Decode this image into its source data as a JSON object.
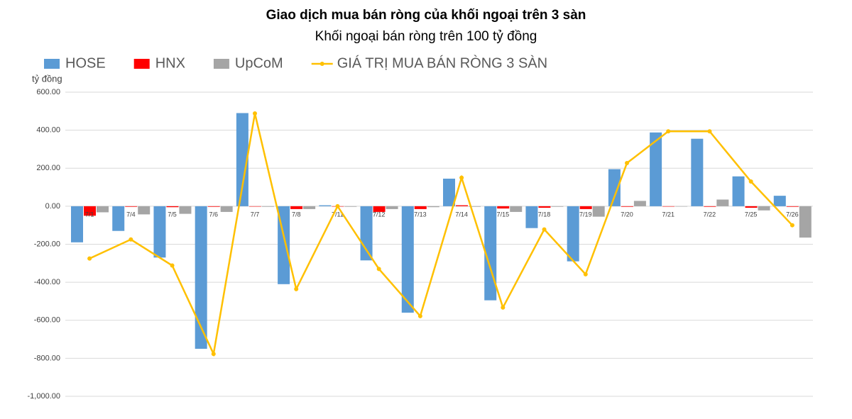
{
  "chart_data": {
    "type": "bar",
    "title": "Giao dịch mua bán ròng của khối ngoại trên 3 sàn",
    "subtitle": "Khối ngoại bán ròng trên 100 tỷ đồng",
    "y_label": "tỷ đồng",
    "categories": [
      "7/1",
      "7/4",
      "7/5",
      "7/6",
      "7/7",
      "7/8",
      "7/11",
      "7/12",
      "7/13",
      "7/14",
      "7/15",
      "7/18",
      "7/19",
      "7/20",
      "7/21",
      "7/22",
      "7/25",
      "7/26"
    ],
    "series": [
      {
        "name": "HOSE",
        "color": "#5b9bd5",
        "values": [
          -190,
          -130,
          -270,
          -750,
          490,
          -410,
          5,
          -285,
          -560,
          145,
          -495,
          -115,
          -290,
          195,
          388,
          355,
          157,
          55
        ]
      },
      {
        "name": "HNX",
        "color": "#ff0000",
        "values": [
          -50,
          -3,
          -5,
          -3,
          -2,
          -15,
          -2,
          -30,
          -15,
          5,
          -12,
          -8,
          -15,
          -3,
          -2,
          -3,
          -8,
          -3
        ]
      },
      {
        "name": "UpCoM",
        "color": "#a5a5a5",
        "values": [
          -32,
          -43,
          -40,
          -30,
          -3,
          -15,
          -3,
          -15,
          -5,
          -3,
          -30,
          -3,
          -55,
          28,
          -2,
          35,
          -22,
          -165
        ]
      },
      {
        "name": "GIÁ TRỊ MUA BÁN RÒNG 3 SÀN",
        "color": "#ffc000",
        "type": "line",
        "values": [
          -275,
          -175,
          -312,
          -777,
          488,
          -436,
          0,
          -330,
          -578,
          150,
          -533,
          -122,
          -358,
          227,
          394,
          394,
          130,
          -100
        ]
      }
    ],
    "ylim": [
      -1000,
      600
    ],
    "yticks": [
      {
        "value": -1000,
        "label": "-1,000.00"
      },
      {
        "value": -800,
        "label": "-800.00"
      },
      {
        "value": -600,
        "label": "-600.00"
      },
      {
        "value": -400,
        "label": "-400.00"
      },
      {
        "value": -200,
        "label": "-200.00"
      },
      {
        "value": 0,
        "label": "0.00"
      },
      {
        "value": 200,
        "label": "200.00"
      },
      {
        "value": 400,
        "label": "400.00"
      },
      {
        "value": 600,
        "label": "600.00"
      }
    ],
    "grid": true
  }
}
